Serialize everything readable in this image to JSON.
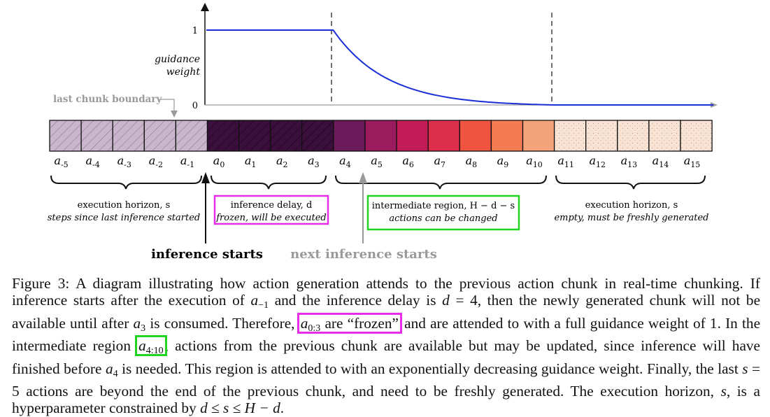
{
  "chart": {
    "y_axis": {
      "label_line1": "guidance",
      "label_line2": "weight",
      "tick_high": "1",
      "tick_low": "0"
    },
    "annotation_boundary": "last chunk boundary",
    "curve": {
      "color": "#1a2fd6",
      "flat_until_action": 4,
      "decay_end_action": 11
    }
  },
  "cells": [
    {
      "label": "a",
      "sub": "-5",
      "fill": "#c9b6cc",
      "pattern": "hatch"
    },
    {
      "label": "a",
      "sub": "-4",
      "fill": "#c9b6cc",
      "pattern": "hatch"
    },
    {
      "label": "a",
      "sub": "-3",
      "fill": "#c9b6cc",
      "pattern": "hatch"
    },
    {
      "label": "a",
      "sub": "-2",
      "fill": "#c9b6cc",
      "pattern": "hatch"
    },
    {
      "label": "a",
      "sub": "-1",
      "fill": "#c9b6cc",
      "pattern": "hatch"
    },
    {
      "label": "a",
      "sub": "0",
      "fill": "#3a0f3c",
      "pattern": "hatch-dark"
    },
    {
      "label": "a",
      "sub": "1",
      "fill": "#3a0f3c",
      "pattern": "hatch-dark"
    },
    {
      "label": "a",
      "sub": "2",
      "fill": "#3a0f3c",
      "pattern": "hatch-dark"
    },
    {
      "label": "a",
      "sub": "3",
      "fill": "#3a0f3c",
      "pattern": "hatch-dark"
    },
    {
      "label": "a",
      "sub": "4",
      "fill": "#6b1a5a",
      "pattern": "none"
    },
    {
      "label": "a",
      "sub": "5",
      "fill": "#9c1a5e",
      "pattern": "none"
    },
    {
      "label": "a",
      "sub": "6",
      "fill": "#c21c57",
      "pattern": "none"
    },
    {
      "label": "a",
      "sub": "7",
      "fill": "#dc2e4a",
      "pattern": "none"
    },
    {
      "label": "a",
      "sub": "8",
      "fill": "#ee5440",
      "pattern": "none"
    },
    {
      "label": "a",
      "sub": "9",
      "fill": "#f37c52",
      "pattern": "none"
    },
    {
      "label": "a",
      "sub": "10",
      "fill": "#f5a37b",
      "pattern": "none"
    },
    {
      "label": "a",
      "sub": "11",
      "fill": "#f8e2d4",
      "pattern": "dots"
    },
    {
      "label": "a",
      "sub": "12",
      "fill": "#f8e2d4",
      "pattern": "dots"
    },
    {
      "label": "a",
      "sub": "13",
      "fill": "#f8e2d4",
      "pattern": "dots"
    },
    {
      "label": "a",
      "sub": "14",
      "fill": "#f8e2d4",
      "pattern": "dots"
    },
    {
      "label": "a",
      "sub": "15",
      "fill": "#f8e2d4",
      "pattern": "dots"
    }
  ],
  "regions": {
    "execution_left": {
      "line1": "execution horizon, s",
      "line2": "steps since last inference started"
    },
    "inference_delay": {
      "line1": "inference delay, d",
      "line2": "frozen, will be executed",
      "box_color": "#e62ee6"
    },
    "intermediate": {
      "line1": "intermediate region, H − d − s",
      "line2": "actions can be changed",
      "box_color": "#22d322"
    },
    "execution_right": {
      "line1": "execution horizon, s",
      "line2": "empty, must be freshly generated"
    }
  },
  "markers": {
    "inference_starts": "inference starts",
    "next_inference_starts": "next inference starts"
  },
  "caption": {
    "figure_label": "Figure 3:",
    "s1": "A diagram illustrating how action generation attends to the previous action chunk in real-time chunking. If inference starts after the execution of",
    "m1": "a",
    "m1_sub": "−1",
    "s2": "and the inference delay is",
    "m2": "d",
    "s3": "= 4, then the newly generated chunk will not be available until after",
    "m3": "a",
    "m3_sub": "3",
    "s4": "is consumed. Therefore,",
    "m4": "a",
    "m4_sub": "0:3",
    "s5": "are “frozen”",
    "s6": "and are attended to with a full guidance weight of 1. In the intermediate region",
    "m5": "a",
    "m5_sub": "4:10",
    "s7": ", actions from the previous chunk are available but may be updated, since inference will have finished before",
    "m6": "a",
    "m6_sub": "4",
    "s8": "is needed. This region is attended to with an exponentially decreasing guidance weight. Finally, the last",
    "m7": "s",
    "s9": "= 5 actions are beyond the end of the previous chunk, and need to be freshly generated. The execution horizon,",
    "m8": "s",
    "s10": ", is a hyperparameter constrained by",
    "m9": "d ≤ s ≤ H − d",
    "s11": "."
  }
}
